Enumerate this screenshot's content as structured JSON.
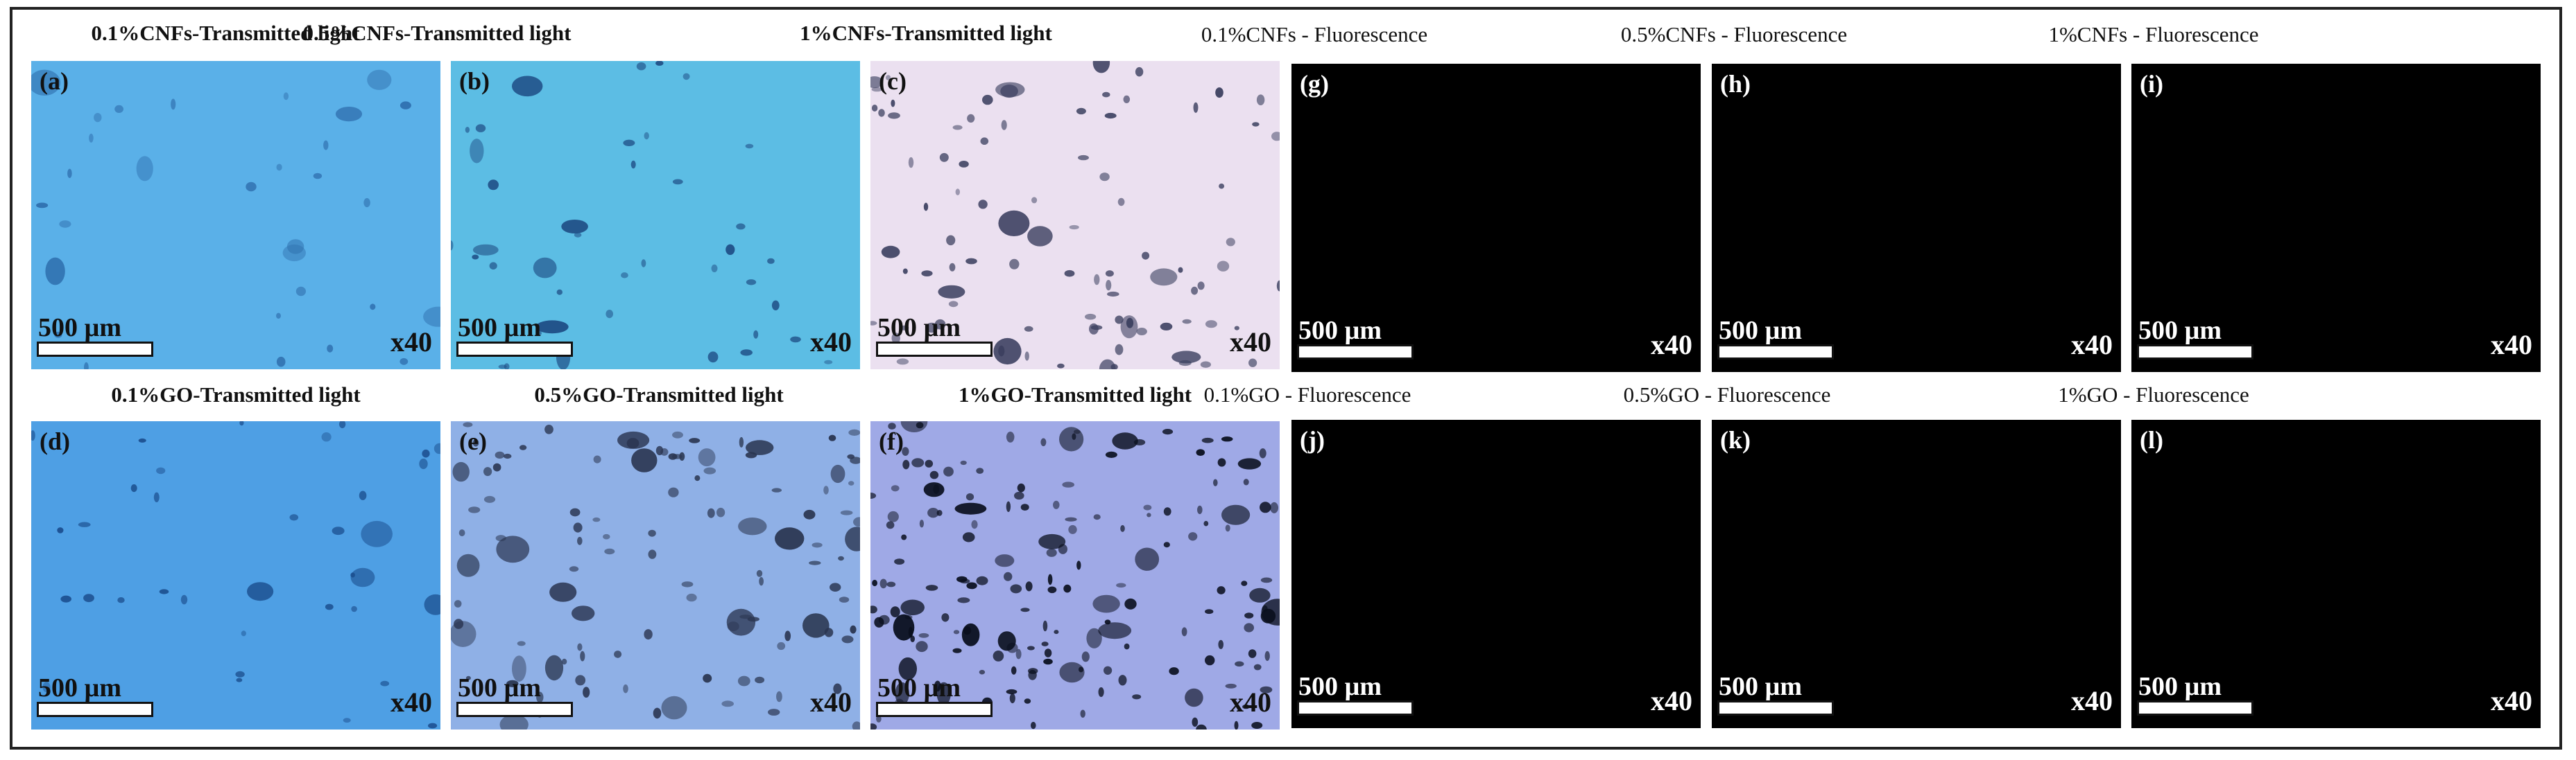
{
  "figure": {
    "panels": [
      {
        "id": "a",
        "label": "(a)",
        "title": "0.1%CNFs-Transmitted light",
        "scale_bar": "500 µm",
        "magnification": "x40",
        "mode": "transmitted",
        "base_color": "#5ab0e8",
        "particle_color": "#2f6fae",
        "particle_count": 30
      },
      {
        "id": "b",
        "label": "(b)",
        "title": "0.5%CNFs-Transmitted light",
        "scale_bar": "500 µm",
        "magnification": "x40",
        "mode": "transmitted",
        "base_color": "#5cbde4",
        "particle_color": "#1f4e86",
        "particle_count": 40
      },
      {
        "id": "c",
        "label": "(c)",
        "title": "1%CNFs-Transmitted light",
        "scale_bar": "500 µm",
        "magnification": "x40",
        "mode": "transmitted",
        "base_color": "#ebe0f0",
        "particle_color": "#3b3f5f",
        "particle_count": 90
      },
      {
        "id": "g",
        "label": "(g)",
        "title": "0.1%CNFs - Fluorescence",
        "scale_bar": "500 µm",
        "magnification": "x40",
        "mode": "fluorescence",
        "base_color": "#000000",
        "particle_color": "#000000",
        "particle_count": 0
      },
      {
        "id": "h",
        "label": "(h)",
        "title": "0.5%CNFs - Fluorescence",
        "scale_bar": "500 µm",
        "magnification": "x40",
        "mode": "fluorescence",
        "base_color": "#000000",
        "particle_color": "#000000",
        "particle_count": 0
      },
      {
        "id": "i",
        "label": "(i)",
        "title": "1%CNFs - Fluorescence",
        "scale_bar": "500 µm",
        "magnification": "x40",
        "mode": "fluorescence",
        "base_color": "#000000",
        "particle_color": "#000000",
        "particle_count": 0
      },
      {
        "id": "d",
        "label": "(d)",
        "title": "0.1%GO-Transmitted light",
        "scale_bar": "500 µm",
        "magnification": "x40",
        "mode": "transmitted",
        "base_color": "#4e9fe4",
        "particle_color": "#1c4f8f",
        "particle_count": 35
      },
      {
        "id": "e",
        "label": "(e)",
        "title": "0.5%GO-Transmitted light",
        "scale_bar": "500 µm",
        "magnification": "x40",
        "mode": "transmitted",
        "base_color": "#8fb0e6",
        "particle_color": "#2a3550",
        "particle_count": 110
      },
      {
        "id": "f",
        "label": "(f)",
        "title": "1%GO-Transmitted light",
        "scale_bar": "500 µm",
        "magnification": "x40",
        "mode": "transmitted",
        "base_color": "#9fa9e6",
        "particle_color": "#0a0f1e",
        "particle_count": 170
      },
      {
        "id": "j",
        "label": "(j)",
        "title": "0.1%GO - Fluorescence",
        "scale_bar": "500 µm",
        "magnification": "x40",
        "mode": "fluorescence",
        "base_color": "#000000",
        "particle_color": "#000000",
        "particle_count": 0
      },
      {
        "id": "k",
        "label": "(k)",
        "title": "0.5%GO - Fluorescence",
        "scale_bar": "500 µm",
        "magnification": "x40",
        "mode": "fluorescence",
        "base_color": "#000000",
        "particle_color": "#000000",
        "particle_count": 0
      },
      {
        "id": "l",
        "label": "(l)",
        "title": "1%GO - Fluorescence",
        "scale_bar": "500 µm",
        "magnification": "x40",
        "mode": "fluorescence",
        "base_color": "#000000",
        "particle_color": "#000000",
        "particle_count": 0
      }
    ]
  }
}
